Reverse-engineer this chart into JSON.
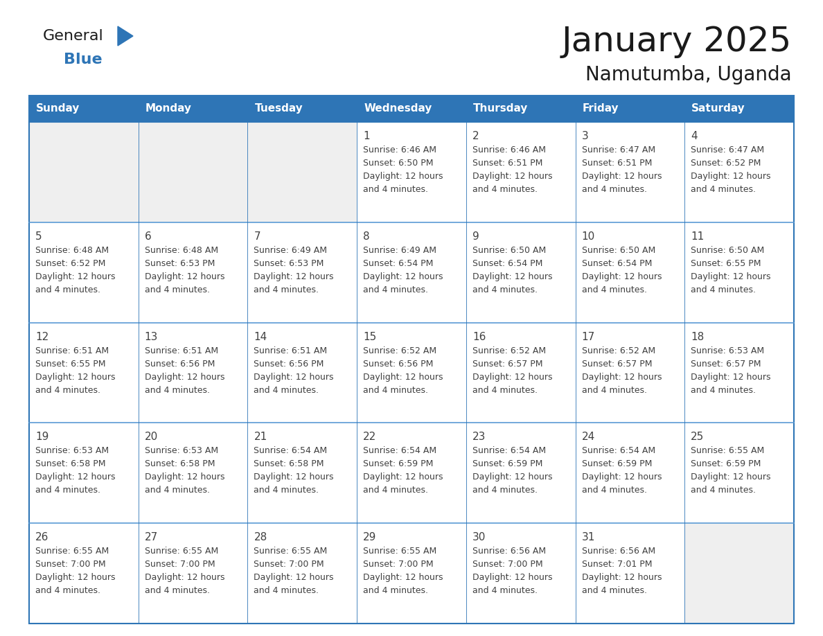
{
  "title": "January 2025",
  "subtitle": "Namutumba, Uganda",
  "days_of_week": [
    "Sunday",
    "Monday",
    "Tuesday",
    "Wednesday",
    "Thursday",
    "Friday",
    "Saturday"
  ],
  "header_bg": "#2E75B6",
  "header_text_color": "#FFFFFF",
  "cell_bg_light": "#EFEFEF",
  "cell_bg_white": "#FFFFFF",
  "border_color": "#2E75B6",
  "separator_color": "#5B9BD5",
  "text_color": "#404040",
  "title_color": "#1a1a1a",
  "calendar_data": [
    [
      {
        "day": "",
        "sunrise": "",
        "sunset": "",
        "daylight": ""
      },
      {
        "day": "",
        "sunrise": "",
        "sunset": "",
        "daylight": ""
      },
      {
        "day": "",
        "sunrise": "",
        "sunset": "",
        "daylight": ""
      },
      {
        "day": "1",
        "sunrise": "6:46 AM",
        "sunset": "6:50 PM",
        "daylight": "12 hours and 4 minutes."
      },
      {
        "day": "2",
        "sunrise": "6:46 AM",
        "sunset": "6:51 PM",
        "daylight": "12 hours and 4 minutes."
      },
      {
        "day": "3",
        "sunrise": "6:47 AM",
        "sunset": "6:51 PM",
        "daylight": "12 hours and 4 minutes."
      },
      {
        "day": "4",
        "sunrise": "6:47 AM",
        "sunset": "6:52 PM",
        "daylight": "12 hours and 4 minutes."
      }
    ],
    [
      {
        "day": "5",
        "sunrise": "6:48 AM",
        "sunset": "6:52 PM",
        "daylight": "12 hours and 4 minutes."
      },
      {
        "day": "6",
        "sunrise": "6:48 AM",
        "sunset": "6:53 PM",
        "daylight": "12 hours and 4 minutes."
      },
      {
        "day": "7",
        "sunrise": "6:49 AM",
        "sunset": "6:53 PM",
        "daylight": "12 hours and 4 minutes."
      },
      {
        "day": "8",
        "sunrise": "6:49 AM",
        "sunset": "6:54 PM",
        "daylight": "12 hours and 4 minutes."
      },
      {
        "day": "9",
        "sunrise": "6:50 AM",
        "sunset": "6:54 PM",
        "daylight": "12 hours and 4 minutes."
      },
      {
        "day": "10",
        "sunrise": "6:50 AM",
        "sunset": "6:54 PM",
        "daylight": "12 hours and 4 minutes."
      },
      {
        "day": "11",
        "sunrise": "6:50 AM",
        "sunset": "6:55 PM",
        "daylight": "12 hours and 4 minutes."
      }
    ],
    [
      {
        "day": "12",
        "sunrise": "6:51 AM",
        "sunset": "6:55 PM",
        "daylight": "12 hours and 4 minutes."
      },
      {
        "day": "13",
        "sunrise": "6:51 AM",
        "sunset": "6:56 PM",
        "daylight": "12 hours and 4 minutes."
      },
      {
        "day": "14",
        "sunrise": "6:51 AM",
        "sunset": "6:56 PM",
        "daylight": "12 hours and 4 minutes."
      },
      {
        "day": "15",
        "sunrise": "6:52 AM",
        "sunset": "6:56 PM",
        "daylight": "12 hours and 4 minutes."
      },
      {
        "day": "16",
        "sunrise": "6:52 AM",
        "sunset": "6:57 PM",
        "daylight": "12 hours and 4 minutes."
      },
      {
        "day": "17",
        "sunrise": "6:52 AM",
        "sunset": "6:57 PM",
        "daylight": "12 hours and 4 minutes."
      },
      {
        "day": "18",
        "sunrise": "6:53 AM",
        "sunset": "6:57 PM",
        "daylight": "12 hours and 4 minutes."
      }
    ],
    [
      {
        "day": "19",
        "sunrise": "6:53 AM",
        "sunset": "6:58 PM",
        "daylight": "12 hours and 4 minutes."
      },
      {
        "day": "20",
        "sunrise": "6:53 AM",
        "sunset": "6:58 PM",
        "daylight": "12 hours and 4 minutes."
      },
      {
        "day": "21",
        "sunrise": "6:54 AM",
        "sunset": "6:58 PM",
        "daylight": "12 hours and 4 minutes."
      },
      {
        "day": "22",
        "sunrise": "6:54 AM",
        "sunset": "6:59 PM",
        "daylight": "12 hours and 4 minutes."
      },
      {
        "day": "23",
        "sunrise": "6:54 AM",
        "sunset": "6:59 PM",
        "daylight": "12 hours and 4 minutes."
      },
      {
        "day": "24",
        "sunrise": "6:54 AM",
        "sunset": "6:59 PM",
        "daylight": "12 hours and 4 minutes."
      },
      {
        "day": "25",
        "sunrise": "6:55 AM",
        "sunset": "6:59 PM",
        "daylight": "12 hours and 4 minutes."
      }
    ],
    [
      {
        "day": "26",
        "sunrise": "6:55 AM",
        "sunset": "7:00 PM",
        "daylight": "12 hours and 4 minutes."
      },
      {
        "day": "27",
        "sunrise": "6:55 AM",
        "sunset": "7:00 PM",
        "daylight": "12 hours and 4 minutes."
      },
      {
        "day": "28",
        "sunrise": "6:55 AM",
        "sunset": "7:00 PM",
        "daylight": "12 hours and 4 minutes."
      },
      {
        "day": "29",
        "sunrise": "6:55 AM",
        "sunset": "7:00 PM",
        "daylight": "12 hours and 4 minutes."
      },
      {
        "day": "30",
        "sunrise": "6:56 AM",
        "sunset": "7:00 PM",
        "daylight": "12 hours and 4 minutes."
      },
      {
        "day": "31",
        "sunrise": "6:56 AM",
        "sunset": "7:01 PM",
        "daylight": "12 hours and 4 minutes."
      },
      {
        "day": "",
        "sunrise": "",
        "sunset": "",
        "daylight": ""
      }
    ]
  ],
  "logo_text_general": "General",
  "logo_text_blue": "Blue",
  "logo_color_general": "#1a1a1a",
  "logo_color_blue": "#2E75B6",
  "figsize": [
    11.88,
    9.18
  ],
  "dpi": 100
}
